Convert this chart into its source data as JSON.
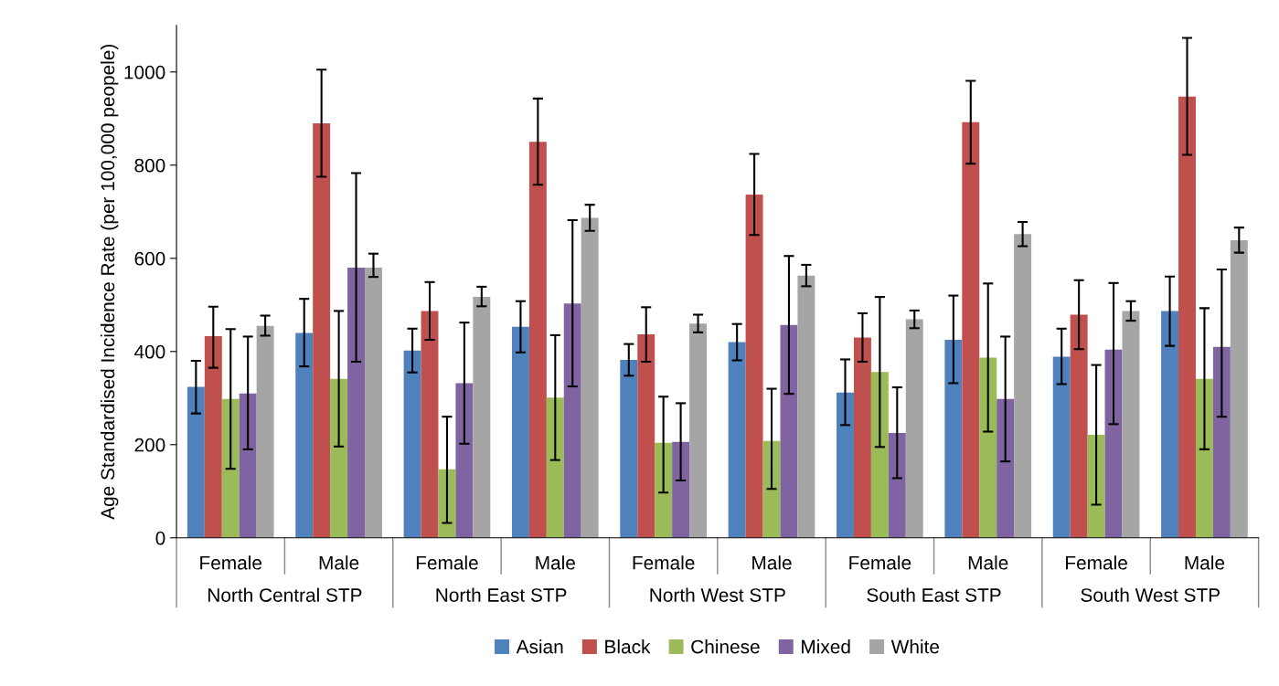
{
  "chart_data": {
    "type": "bar",
    "ylabel": "Age Standardised Incidence Rate (per 100,000 peopele)",
    "categories": [
      "Female",
      "Male",
      "Female",
      "Male",
      "Female",
      "Male",
      "Female",
      "Male",
      "Female",
      "Male"
    ],
    "annotations": [
      "North Central STP",
      "North East STP",
      "North West STP",
      "South East STP",
      "South West STP"
    ],
    "ylim": [
      0,
      1100
    ],
    "yticks": [
      0,
      200,
      400,
      600,
      800,
      1000
    ],
    "grid": false,
    "legend": "bottom",
    "series": [
      {
        "name": "Asian",
        "color": "#4f81bd",
        "values": [
          324,
          440,
          402,
          453,
          382,
          420,
          312,
          425,
          389,
          487
        ],
        "errors": [
          [
            267,
            380
          ],
          [
            368,
            513
          ],
          [
            355,
            449
          ],
          [
            398,
            508
          ],
          [
            348,
            416
          ],
          [
            381,
            459
          ],
          [
            242,
            383
          ],
          [
            332,
            520
          ],
          [
            330,
            449
          ],
          [
            412,
            561
          ]
        ]
      },
      {
        "name": "Black",
        "color": "#c0504d",
        "values": [
          433,
          890,
          487,
          850,
          437,
          737,
          430,
          892,
          479,
          947
        ],
        "errors": [
          [
            365,
            496
          ],
          [
            775,
            1005
          ],
          [
            425,
            549
          ],
          [
            758,
            943
          ],
          [
            378,
            495
          ],
          [
            650,
            824
          ],
          [
            378,
            482
          ],
          [
            803,
            981
          ],
          [
            405,
            553
          ],
          [
            822,
            1073
          ]
        ]
      },
      {
        "name": "Chinese",
        "color": "#9bbb59",
        "values": [
          298,
          341,
          147,
          301,
          204,
          208,
          356,
          387,
          221,
          341
        ],
        "errors": [
          [
            148,
            448
          ],
          [
            196,
            487
          ],
          [
            32,
            260
          ],
          [
            167,
            435
          ],
          [
            97,
            303
          ],
          [
            105,
            320
          ],
          [
            195,
            517
          ],
          [
            228,
            546
          ],
          [
            71,
            371
          ],
          [
            190,
            493
          ]
        ]
      },
      {
        "name": "Mixed",
        "color": "#8064a2",
        "values": [
          310,
          580,
          332,
          503,
          206,
          457,
          225,
          298,
          404,
          410
        ],
        "errors": [
          [
            190,
            432
          ],
          [
            378,
            783
          ],
          [
            202,
            462
          ],
          [
            325,
            682
          ],
          [
            123,
            289
          ],
          [
            309,
            605
          ],
          [
            128,
            323
          ],
          [
            164,
            432
          ],
          [
            244,
            547
          ],
          [
            260,
            576
          ]
        ]
      },
      {
        "name": "White",
        "color": "#a5a5a5",
        "values": [
          455,
          580,
          517,
          687,
          460,
          563,
          469,
          652,
          487,
          639
        ],
        "errors": [
          [
            434,
            477
          ],
          [
            560,
            610
          ],
          [
            497,
            539
          ],
          [
            659,
            715
          ],
          [
            441,
            479
          ],
          [
            540,
            586
          ],
          [
            450,
            488
          ],
          [
            626,
            678
          ],
          [
            466,
            508
          ],
          [
            612,
            666
          ]
        ]
      }
    ]
  }
}
